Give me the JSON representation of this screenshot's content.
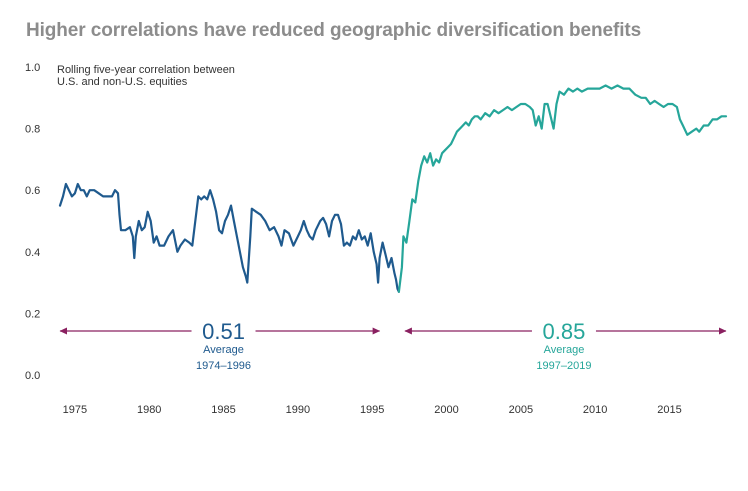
{
  "title": "Higher correlations have reduced geographic diversification benefits",
  "chart_data": {
    "type": "line",
    "ylabel": "Rolling five-year correlation between U.S. and non-U.S. equities",
    "ylabel_lines": [
      "Rolling five-year correlation between",
      "U.S. and non-U.S. equities"
    ],
    "xlim": [
      1974,
      2018.8
    ],
    "ylim": [
      0,
      1.0
    ],
    "x_ticks": [
      1975,
      1980,
      1985,
      1990,
      1995,
      2000,
      2005,
      2010,
      2015
    ],
    "y_ticks": [
      0.0,
      0.2,
      0.4,
      0.6,
      0.8,
      1.0
    ],
    "y_tick_labels": [
      "0.0",
      "0.2",
      "0.4",
      "0.6",
      "0.8",
      "1.0"
    ],
    "grid": false,
    "series": [
      {
        "color": "#1f5a8e",
        "points": [
          [
            1974.0,
            0.55
          ],
          [
            1974.2,
            0.58
          ],
          [
            1974.4,
            0.62
          ],
          [
            1974.6,
            0.6
          ],
          [
            1974.8,
            0.58
          ],
          [
            1975.0,
            0.59
          ],
          [
            1975.2,
            0.62
          ],
          [
            1975.4,
            0.6
          ],
          [
            1975.6,
            0.6
          ],
          [
            1975.8,
            0.58
          ],
          [
            1976.0,
            0.6
          ],
          [
            1976.3,
            0.6
          ],
          [
            1976.6,
            0.59
          ],
          [
            1976.9,
            0.58
          ],
          [
            1977.2,
            0.58
          ],
          [
            1977.5,
            0.58
          ],
          [
            1977.7,
            0.6
          ],
          [
            1977.9,
            0.59
          ],
          [
            1978.0,
            0.52
          ],
          [
            1978.1,
            0.47
          ],
          [
            1978.4,
            0.47
          ],
          [
            1978.7,
            0.48
          ],
          [
            1978.9,
            0.45
          ],
          [
            1979.0,
            0.38
          ],
          [
            1979.1,
            0.45
          ],
          [
            1979.3,
            0.5
          ],
          [
            1979.5,
            0.47
          ],
          [
            1979.7,
            0.48
          ],
          [
            1979.9,
            0.53
          ],
          [
            1980.1,
            0.5
          ],
          [
            1980.3,
            0.43
          ],
          [
            1980.5,
            0.45
          ],
          [
            1980.7,
            0.42
          ],
          [
            1981.0,
            0.42
          ],
          [
            1981.3,
            0.45
          ],
          [
            1981.6,
            0.47
          ],
          [
            1981.9,
            0.4
          ],
          [
            1982.1,
            0.42
          ],
          [
            1982.4,
            0.44
          ],
          [
            1982.7,
            0.43
          ],
          [
            1982.9,
            0.42
          ],
          [
            1983.1,
            0.5
          ],
          [
            1983.3,
            0.58
          ],
          [
            1983.5,
            0.57
          ],
          [
            1983.7,
            0.58
          ],
          [
            1983.9,
            0.57
          ],
          [
            1984.1,
            0.6
          ],
          [
            1984.3,
            0.57
          ],
          [
            1984.5,
            0.53
          ],
          [
            1984.7,
            0.47
          ],
          [
            1984.9,
            0.46
          ],
          [
            1985.1,
            0.5
          ],
          [
            1985.3,
            0.52
          ],
          [
            1985.5,
            0.55
          ],
          [
            1985.7,
            0.5
          ],
          [
            1985.9,
            0.45
          ],
          [
            1986.1,
            0.4
          ],
          [
            1986.3,
            0.35
          ],
          [
            1986.5,
            0.32
          ],
          [
            1986.6,
            0.3
          ],
          [
            1986.8,
            0.45
          ],
          [
            1986.9,
            0.54
          ],
          [
            1987.2,
            0.53
          ],
          [
            1987.5,
            0.52
          ],
          [
            1987.8,
            0.5
          ],
          [
            1988.1,
            0.47
          ],
          [
            1988.4,
            0.48
          ],
          [
            1988.7,
            0.45
          ],
          [
            1988.9,
            0.42
          ],
          [
            1989.1,
            0.47
          ],
          [
            1989.4,
            0.46
          ],
          [
            1989.7,
            0.42
          ],
          [
            1990.0,
            0.45
          ],
          [
            1990.2,
            0.47
          ],
          [
            1990.4,
            0.5
          ],
          [
            1990.6,
            0.47
          ],
          [
            1990.8,
            0.45
          ],
          [
            1991.0,
            0.44
          ],
          [
            1991.2,
            0.47
          ],
          [
            1991.5,
            0.5
          ],
          [
            1991.7,
            0.51
          ],
          [
            1991.9,
            0.49
          ],
          [
            1992.1,
            0.45
          ],
          [
            1992.3,
            0.5
          ],
          [
            1992.5,
            0.52
          ],
          [
            1992.7,
            0.52
          ],
          [
            1992.9,
            0.49
          ],
          [
            1993.1,
            0.42
          ],
          [
            1993.3,
            0.43
          ],
          [
            1993.5,
            0.42
          ],
          [
            1993.7,
            0.45
          ],
          [
            1993.9,
            0.44
          ],
          [
            1994.1,
            0.47
          ],
          [
            1994.3,
            0.44
          ],
          [
            1994.5,
            0.45
          ],
          [
            1994.7,
            0.42
          ],
          [
            1994.9,
            0.46
          ],
          [
            1995.1,
            0.4
          ],
          [
            1995.3,
            0.36
          ],
          [
            1995.4,
            0.3
          ],
          [
            1995.5,
            0.38
          ],
          [
            1995.7,
            0.43
          ],
          [
            1995.9,
            0.39
          ],
          [
            1996.1,
            0.35
          ],
          [
            1996.3,
            0.38
          ],
          [
            1996.5,
            0.33
          ],
          [
            1996.6,
            0.31
          ],
          [
            1996.7,
            0.28
          ],
          [
            1996.8,
            0.27
          ]
        ]
      },
      {
        "color": "#26a69a",
        "points": [
          [
            1996.8,
            0.27
          ],
          [
            1997.0,
            0.35
          ],
          [
            1997.1,
            0.45
          ],
          [
            1997.3,
            0.43
          ],
          [
            1997.5,
            0.5
          ],
          [
            1997.7,
            0.57
          ],
          [
            1997.9,
            0.56
          ],
          [
            1998.1,
            0.63
          ],
          [
            1998.3,
            0.68
          ],
          [
            1998.5,
            0.71
          ],
          [
            1998.7,
            0.69
          ],
          [
            1998.9,
            0.72
          ],
          [
            1999.1,
            0.68
          ],
          [
            1999.3,
            0.7
          ],
          [
            1999.5,
            0.69
          ],
          [
            1999.7,
            0.72
          ],
          [
            1999.9,
            0.73
          ],
          [
            2000.1,
            0.74
          ],
          [
            2000.3,
            0.75
          ],
          [
            2000.5,
            0.77
          ],
          [
            2000.7,
            0.79
          ],
          [
            2000.9,
            0.8
          ],
          [
            2001.1,
            0.81
          ],
          [
            2001.3,
            0.82
          ],
          [
            2001.5,
            0.81
          ],
          [
            2001.7,
            0.83
          ],
          [
            2001.9,
            0.84
          ],
          [
            2002.1,
            0.84
          ],
          [
            2002.3,
            0.83
          ],
          [
            2002.6,
            0.85
          ],
          [
            2002.9,
            0.84
          ],
          [
            2003.2,
            0.86
          ],
          [
            2003.5,
            0.85
          ],
          [
            2003.8,
            0.86
          ],
          [
            2004.1,
            0.87
          ],
          [
            2004.4,
            0.86
          ],
          [
            2004.7,
            0.87
          ],
          [
            2005.0,
            0.88
          ],
          [
            2005.3,
            0.88
          ],
          [
            2005.6,
            0.87
          ],
          [
            2005.8,
            0.86
          ],
          [
            2006.0,
            0.81
          ],
          [
            2006.2,
            0.84
          ],
          [
            2006.4,
            0.8
          ],
          [
            2006.6,
            0.88
          ],
          [
            2006.8,
            0.88
          ],
          [
            2007.0,
            0.84
          ],
          [
            2007.2,
            0.8
          ],
          [
            2007.4,
            0.88
          ],
          [
            2007.6,
            0.92
          ],
          [
            2007.9,
            0.91
          ],
          [
            2008.2,
            0.93
          ],
          [
            2008.5,
            0.92
          ],
          [
            2008.8,
            0.93
          ],
          [
            2009.1,
            0.92
          ],
          [
            2009.5,
            0.93
          ],
          [
            2009.9,
            0.93
          ],
          [
            2010.3,
            0.93
          ],
          [
            2010.7,
            0.94
          ],
          [
            2011.1,
            0.93
          ],
          [
            2011.5,
            0.94
          ],
          [
            2011.9,
            0.93
          ],
          [
            2012.3,
            0.93
          ],
          [
            2012.7,
            0.91
          ],
          [
            2013.1,
            0.9
          ],
          [
            2013.4,
            0.9
          ],
          [
            2013.7,
            0.88
          ],
          [
            2014.0,
            0.89
          ],
          [
            2014.3,
            0.88
          ],
          [
            2014.6,
            0.87
          ],
          [
            2014.9,
            0.88
          ],
          [
            2015.2,
            0.88
          ],
          [
            2015.5,
            0.87
          ],
          [
            2015.7,
            0.83
          ],
          [
            2015.9,
            0.81
          ],
          [
            2016.2,
            0.78
          ],
          [
            2016.5,
            0.79
          ],
          [
            2016.8,
            0.8
          ],
          [
            2017.0,
            0.79
          ],
          [
            2017.3,
            0.81
          ],
          [
            2017.6,
            0.81
          ],
          [
            2017.9,
            0.83
          ],
          [
            2018.2,
            0.83
          ],
          [
            2018.5,
            0.84
          ],
          [
            2018.8,
            0.84
          ]
        ]
      }
    ],
    "annotations": [
      {
        "value": "0.51",
        "label": "Average",
        "period": "1974–1996",
        "color": "#1f5a8e",
        "range": [
          1974.0,
          1995.5
        ],
        "center": 1985.0
      },
      {
        "value": "0.85",
        "label": "Average",
        "period": "1997–2019",
        "color": "#26a69a",
        "range": [
          1997.2,
          2018.8
        ],
        "center": 2007.9
      }
    ],
    "arrow_color": "#8a2060"
  }
}
